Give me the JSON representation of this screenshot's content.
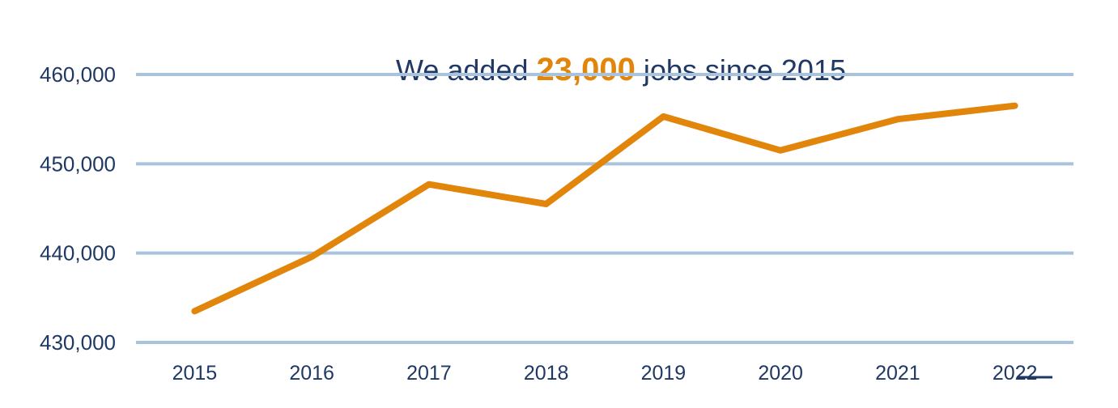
{
  "chart_data": {
    "type": "line",
    "title": "We added 23,000 jobs since 2015",
    "title_parts": {
      "prefix": "We added ",
      "highlight": "23,000",
      "suffix": " jobs since 2015"
    },
    "categories": [
      "2015",
      "2016",
      "2017",
      "2018",
      "2019",
      "2020",
      "2021",
      "2022"
    ],
    "series": [
      {
        "name": "jobs",
        "values": [
          433500,
          439600,
          447700,
          445500,
          455300,
          451500,
          455000,
          456500
        ]
      }
    ],
    "ylim": [
      430000,
      460000
    ],
    "yticks": [
      {
        "value": 430000,
        "label": "430,000"
      },
      {
        "value": 440000,
        "label": "440,000"
      },
      {
        "value": 450000,
        "label": "450,000"
      },
      {
        "value": 460000,
        "label": "460,000"
      }
    ],
    "grid": true,
    "legend": "none",
    "xlabel": "",
    "ylabel": "",
    "colors": {
      "line": "#E2850B",
      "highlight_text": "#E2850B",
      "axis_text": "#1F3864",
      "title_text": "#1F3864",
      "gridline": "#A9C3DC",
      "background": "#FFFFFF"
    }
  }
}
